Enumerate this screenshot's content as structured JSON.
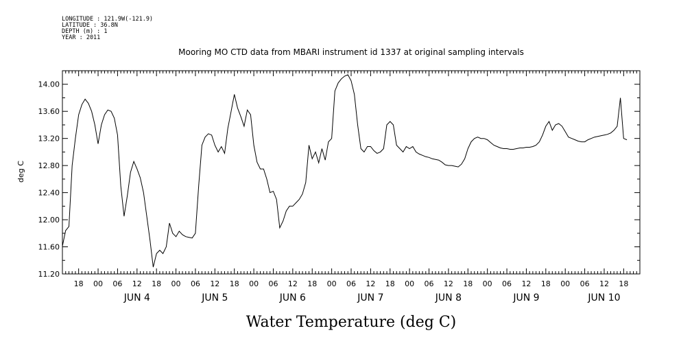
{
  "header": {
    "lines": [
      "LONGITUDE : 121.9W(-121.9)",
      "LATITUDE : 36.8N",
      "DEPTH (m) : 1",
      "YEAR : 2011"
    ],
    "title": "Mooring MO CTD data from MBARI instrument id 1337 at original sampling intervals"
  },
  "chart_data": {
    "type": "line",
    "title": "Mooring MO CTD data from MBARI instrument id 1337 at original sampling intervals",
    "xlabel": "Water Temperature (deg C)",
    "ylabel": "deg C",
    "ylim": [
      11.2,
      14.2
    ],
    "yticks": [
      "11.20",
      "11.60",
      "12.00",
      "12.40",
      "12.80",
      "13.20",
      "13.60",
      "14.00"
    ],
    "xlim": [
      "2011-06-03T13:00",
      "2011-06-10T23:00"
    ],
    "hour_ticks": [
      "00",
      "06",
      "12",
      "18"
    ],
    "day_labels": [
      "JUN 4",
      "JUN 5",
      "JUN 6",
      "JUN 7",
      "JUN 8",
      "JUN 9",
      "JUN 10"
    ],
    "grid": false,
    "series": [
      {
        "color": "#000000",
        "points": [
          [
            "2011-06-03T13:00",
            11.61
          ],
          [
            "2011-06-03T14:00",
            11.84
          ],
          [
            "2011-06-03T15:00",
            11.9
          ],
          [
            "2011-06-03T16:00",
            12.8
          ],
          [
            "2011-06-03T17:00",
            13.2
          ],
          [
            "2011-06-03T18:00",
            13.55
          ],
          [
            "2011-06-03T19:00",
            13.7
          ],
          [
            "2011-06-03T20:00",
            13.78
          ],
          [
            "2011-06-03T21:00",
            13.72
          ],
          [
            "2011-06-03T22:00",
            13.6
          ],
          [
            "2011-06-03T23:00",
            13.4
          ],
          [
            "2011-06-04T00:00",
            13.12
          ],
          [
            "2011-06-04T01:00",
            13.4
          ],
          [
            "2011-06-04T02:00",
            13.55
          ],
          [
            "2011-06-04T03:00",
            13.62
          ],
          [
            "2011-06-04T04:00",
            13.6
          ],
          [
            "2011-06-04T05:00",
            13.5
          ],
          [
            "2011-06-04T06:00",
            13.25
          ],
          [
            "2011-06-04T07:00",
            12.5
          ],
          [
            "2011-06-04T08:00",
            12.05
          ],
          [
            "2011-06-04T09:00",
            12.35
          ],
          [
            "2011-06-04T10:00",
            12.7
          ],
          [
            "2011-06-04T11:00",
            12.86
          ],
          [
            "2011-06-04T12:00",
            12.75
          ],
          [
            "2011-06-04T13:00",
            12.62
          ],
          [
            "2011-06-04T14:00",
            12.4
          ],
          [
            "2011-06-04T15:00",
            12.05
          ],
          [
            "2011-06-04T16:00",
            11.7
          ],
          [
            "2011-06-04T17:00",
            11.3
          ],
          [
            "2011-06-04T18:00",
            11.5
          ],
          [
            "2011-06-04T19:00",
            11.55
          ],
          [
            "2011-06-04T20:00",
            11.5
          ],
          [
            "2011-06-04T21:00",
            11.6
          ],
          [
            "2011-06-04T22:00",
            11.95
          ],
          [
            "2011-06-04T23:00",
            11.8
          ],
          [
            "2011-06-05T00:00",
            11.75
          ],
          [
            "2011-06-05T01:00",
            11.83
          ],
          [
            "2011-06-05T02:00",
            11.78
          ],
          [
            "2011-06-05T03:00",
            11.75
          ],
          [
            "2011-06-05T04:00",
            11.74
          ],
          [
            "2011-06-05T05:00",
            11.73
          ],
          [
            "2011-06-05T06:00",
            11.8
          ],
          [
            "2011-06-05T07:00",
            12.5
          ],
          [
            "2011-06-05T08:00",
            13.1
          ],
          [
            "2011-06-05T09:00",
            13.22
          ],
          [
            "2011-06-05T10:00",
            13.27
          ],
          [
            "2011-06-05T11:00",
            13.25
          ],
          [
            "2011-06-05T12:00",
            13.1
          ],
          [
            "2011-06-05T13:00",
            13.0
          ],
          [
            "2011-06-05T14:00",
            13.08
          ],
          [
            "2011-06-05T15:00",
            12.98
          ],
          [
            "2011-06-05T16:00",
            13.35
          ],
          [
            "2011-06-05T17:00",
            13.6
          ],
          [
            "2011-06-05T18:00",
            13.85
          ],
          [
            "2011-06-05T19:00",
            13.65
          ],
          [
            "2011-06-05T20:00",
            13.52
          ],
          [
            "2011-06-05T21:00",
            13.38
          ],
          [
            "2011-06-05T22:00",
            13.62
          ],
          [
            "2011-06-05T23:00",
            13.55
          ],
          [
            "2011-06-06T00:00",
            13.1
          ],
          [
            "2011-06-06T01:00",
            12.85
          ],
          [
            "2011-06-06T02:00",
            12.75
          ],
          [
            "2011-06-06T03:00",
            12.75
          ],
          [
            "2011-06-06T04:00",
            12.6
          ],
          [
            "2011-06-06T05:00",
            12.4
          ],
          [
            "2011-06-06T06:00",
            12.42
          ],
          [
            "2011-06-06T07:00",
            12.3
          ],
          [
            "2011-06-06T08:00",
            11.88
          ],
          [
            "2011-06-06T09:00",
            11.98
          ],
          [
            "2011-06-06T10:00",
            12.13
          ],
          [
            "2011-06-06T11:00",
            12.2
          ],
          [
            "2011-06-06T12:00",
            12.2
          ],
          [
            "2011-06-06T13:00",
            12.25
          ],
          [
            "2011-06-06T14:00",
            12.3
          ],
          [
            "2011-06-06T15:00",
            12.38
          ],
          [
            "2011-06-06T16:00",
            12.55
          ],
          [
            "2011-06-06T17:00",
            13.1
          ],
          [
            "2011-06-06T18:00",
            12.9
          ],
          [
            "2011-06-06T19:00",
            13.0
          ],
          [
            "2011-06-06T20:00",
            12.84
          ],
          [
            "2011-06-06T21:00",
            13.05
          ],
          [
            "2011-06-06T22:00",
            12.88
          ],
          [
            "2011-06-06T23:00",
            13.15
          ],
          [
            "2011-06-07T00:00",
            13.2
          ],
          [
            "2011-06-07T01:00",
            13.9
          ],
          [
            "2011-06-07T02:00",
            14.02
          ],
          [
            "2011-06-07T03:00",
            14.08
          ],
          [
            "2011-06-07T04:00",
            14.12
          ],
          [
            "2011-06-07T05:00",
            14.14
          ],
          [
            "2011-06-07T06:00",
            14.05
          ],
          [
            "2011-06-07T07:00",
            13.85
          ],
          [
            "2011-06-07T08:00",
            13.4
          ],
          [
            "2011-06-07T09:00",
            13.05
          ],
          [
            "2011-06-07T10:00",
            13.0
          ],
          [
            "2011-06-07T11:00",
            13.08
          ],
          [
            "2011-06-07T12:00",
            13.08
          ],
          [
            "2011-06-07T13:00",
            13.02
          ],
          [
            "2011-06-07T14:00",
            12.98
          ],
          [
            "2011-06-07T15:00",
            13.0
          ],
          [
            "2011-06-07T16:00",
            13.05
          ],
          [
            "2011-06-07T17:00",
            13.4
          ],
          [
            "2011-06-07T18:00",
            13.45
          ],
          [
            "2011-06-07T19:00",
            13.4
          ],
          [
            "2011-06-07T20:00",
            13.1
          ],
          [
            "2011-06-07T21:00",
            13.05
          ],
          [
            "2011-06-07T22:00",
            13.0
          ],
          [
            "2011-06-07T23:00",
            13.08
          ],
          [
            "2011-06-08T00:00",
            13.05
          ],
          [
            "2011-06-08T01:00",
            13.08
          ],
          [
            "2011-06-08T02:00",
            13.0
          ],
          [
            "2011-06-08T03:00",
            12.97
          ],
          [
            "2011-06-08T04:00",
            12.95
          ],
          [
            "2011-06-08T05:00",
            12.93
          ],
          [
            "2011-06-08T06:00",
            12.92
          ],
          [
            "2011-06-08T07:00",
            12.9
          ],
          [
            "2011-06-08T08:00",
            12.89
          ],
          [
            "2011-06-08T09:00",
            12.88
          ],
          [
            "2011-06-08T10:00",
            12.85
          ],
          [
            "2011-06-08T11:00",
            12.81
          ],
          [
            "2011-06-08T12:00",
            12.8
          ],
          [
            "2011-06-08T13:00",
            12.8
          ],
          [
            "2011-06-08T14:00",
            12.79
          ],
          [
            "2011-06-08T15:00",
            12.78
          ],
          [
            "2011-06-08T16:00",
            12.82
          ],
          [
            "2011-06-08T17:00",
            12.9
          ],
          [
            "2011-06-08T18:00",
            13.05
          ],
          [
            "2011-06-08T19:00",
            13.15
          ],
          [
            "2011-06-08T20:00",
            13.2
          ],
          [
            "2011-06-08T21:00",
            13.22
          ],
          [
            "2011-06-08T22:00",
            13.2
          ],
          [
            "2011-06-08T23:00",
            13.2
          ],
          [
            "2011-06-09T00:00",
            13.18
          ],
          [
            "2011-06-09T01:00",
            13.14
          ],
          [
            "2011-06-09T02:00",
            13.1
          ],
          [
            "2011-06-09T03:00",
            13.08
          ],
          [
            "2011-06-09T04:00",
            13.06
          ],
          [
            "2011-06-09T05:00",
            13.05
          ],
          [
            "2011-06-09T06:00",
            13.05
          ],
          [
            "2011-06-09T07:00",
            13.04
          ],
          [
            "2011-06-09T08:00",
            13.04
          ],
          [
            "2011-06-09T09:00",
            13.05
          ],
          [
            "2011-06-09T10:00",
            13.06
          ],
          [
            "2011-06-09T11:00",
            13.06
          ],
          [
            "2011-06-09T12:00",
            13.07
          ],
          [
            "2011-06-09T13:00",
            13.07
          ],
          [
            "2011-06-09T14:00",
            13.08
          ],
          [
            "2011-06-09T15:00",
            13.1
          ],
          [
            "2011-06-09T16:00",
            13.15
          ],
          [
            "2011-06-09T17:00",
            13.25
          ],
          [
            "2011-06-09T18:00",
            13.38
          ],
          [
            "2011-06-09T19:00",
            13.45
          ],
          [
            "2011-06-09T20:00",
            13.32
          ],
          [
            "2011-06-09T21:00",
            13.4
          ],
          [
            "2011-06-09T22:00",
            13.42
          ],
          [
            "2011-06-09T23:00",
            13.38
          ],
          [
            "2011-06-10T00:00",
            13.3
          ],
          [
            "2011-06-10T01:00",
            13.22
          ],
          [
            "2011-06-10T02:00",
            13.2
          ],
          [
            "2011-06-10T03:00",
            13.18
          ],
          [
            "2011-06-10T04:00",
            13.16
          ],
          [
            "2011-06-10T05:00",
            13.15
          ],
          [
            "2011-06-10T06:00",
            13.15
          ],
          [
            "2011-06-10T07:00",
            13.18
          ],
          [
            "2011-06-10T08:00",
            13.2
          ],
          [
            "2011-06-10T09:00",
            13.22
          ],
          [
            "2011-06-10T10:00",
            13.23
          ],
          [
            "2011-06-10T11:00",
            13.24
          ],
          [
            "2011-06-10T12:00",
            13.25
          ],
          [
            "2011-06-10T13:00",
            13.26
          ],
          [
            "2011-06-10T14:00",
            13.28
          ],
          [
            "2011-06-10T15:00",
            13.32
          ],
          [
            "2011-06-10T16:00",
            13.38
          ],
          [
            "2011-06-10T17:00",
            13.8
          ],
          [
            "2011-06-10T18:00",
            13.2
          ],
          [
            "2011-06-10T19:00",
            13.18
          ]
        ]
      }
    ]
  }
}
